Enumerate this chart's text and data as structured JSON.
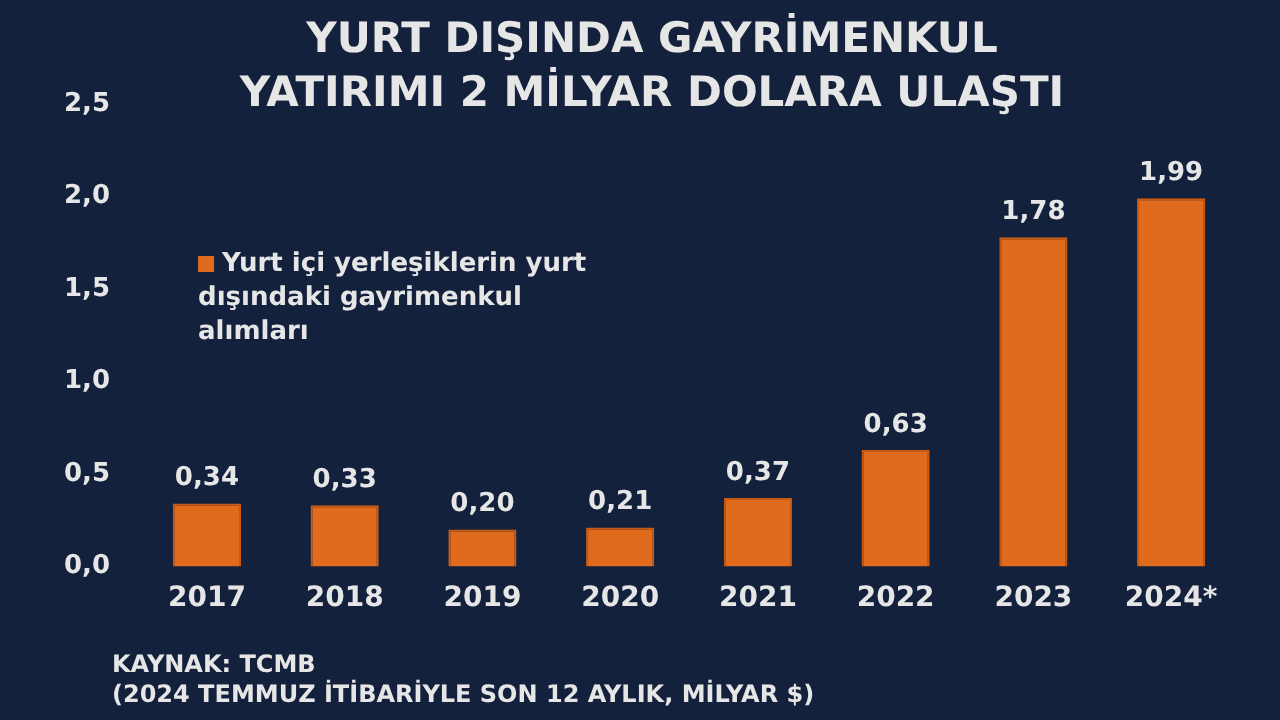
{
  "chart_data": {
    "type": "bar",
    "title": "YURT DIŞINDA GAYRİMENKUL YATIRIMI 2 MİLYAR DOLARA ULAŞTI",
    "categories": [
      "2017",
      "2018",
      "2019",
      "2020",
      "2021",
      "2022",
      "2023",
      "2024*"
    ],
    "series": [
      {
        "name": "Yurt içi yerleşiklerin yurt dışındaki gayrimenkul alımları",
        "color": "#e06b1c",
        "values": [
          0.34,
          0.33,
          0.2,
          0.21,
          0.37,
          0.63,
          1.78,
          1.99
        ],
        "value_labels": [
          "0,34",
          "0,33",
          "0,20",
          "0,21",
          "0,37",
          "0,63",
          "1,78",
          "1,99"
        ]
      }
    ],
    "ylim": [
      0,
      2.5
    ],
    "yticks": [
      {
        "value": 0,
        "label": "0,0"
      },
      {
        "value": 0.5,
        "label": "0,5"
      },
      {
        "value": 1,
        "label": "1,0"
      },
      {
        "value": 1.5,
        "label": "1,5"
      },
      {
        "value": 2,
        "label": "2,0"
      },
      {
        "value": 2.5,
        "label": "2,5"
      }
    ],
    "grid": false,
    "legend": "top left",
    "annotations": [
      "KAYNAK: TCMB",
      "(2024 TEMMUZ İTİBARİYLE SON 12 AYLIK, MİLYAR $)"
    ]
  }
}
